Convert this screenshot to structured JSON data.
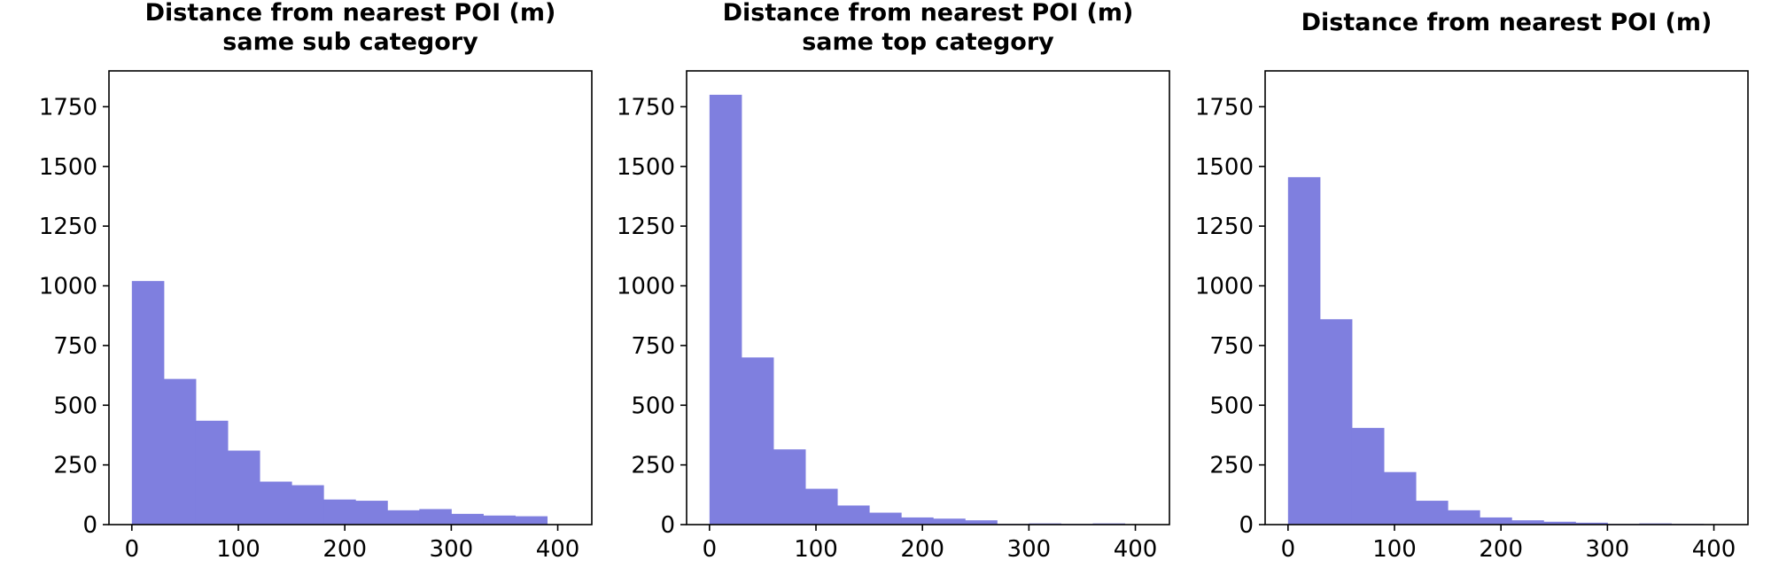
{
  "chart_data": [
    {
      "type": "bar",
      "title": [
        "Distance from nearest POI (m)",
        "same sub category"
      ],
      "bin_edges": [
        0,
        30,
        60,
        90,
        120,
        150,
        180,
        210,
        240,
        270,
        300,
        330,
        360,
        390
      ],
      "values": [
        1020,
        610,
        435,
        310,
        180,
        165,
        105,
        100,
        60,
        65,
        45,
        38,
        35
      ],
      "xlim": [
        -21.5,
        432
      ],
      "ylim": [
        0,
        1900
      ],
      "xticks": [
        "0",
        "100",
        "200",
        "300",
        "400"
      ],
      "yticks": [
        "0",
        "250",
        "500",
        "750",
        "1000",
        "1250",
        "1500",
        "1750"
      ],
      "color": "#7f7fdf",
      "grid": false
    },
    {
      "type": "bar",
      "title": [
        "Distance from nearest POI (m)",
        "same top category"
      ],
      "bin_edges": [
        0,
        30,
        60,
        90,
        120,
        150,
        180,
        210,
        240,
        270,
        300,
        330,
        360,
        390
      ],
      "values": [
        1800,
        700,
        315,
        150,
        80,
        50,
        30,
        25,
        18,
        3,
        5,
        3,
        5
      ],
      "xlim": [
        -21.5,
        432
      ],
      "ylim": [
        0,
        1900
      ],
      "xticks": [
        "0",
        "100",
        "200",
        "300",
        "400"
      ],
      "yticks": [
        "0",
        "250",
        "500",
        "750",
        "1000",
        "1250",
        "1500",
        "1750"
      ],
      "color": "#7f7fdf",
      "grid": false
    },
    {
      "type": "bar",
      "title": [
        "Distance from nearest POI (m)"
      ],
      "bin_edges": [
        0,
        30,
        60,
        90,
        120,
        150,
        180,
        210,
        240,
        270,
        300,
        330,
        360,
        390
      ],
      "values": [
        1455,
        860,
        405,
        220,
        100,
        60,
        30,
        18,
        12,
        8,
        3,
        5,
        3
      ],
      "xlim": [
        -21.5,
        432
      ],
      "ylim": [
        0,
        1900
      ],
      "xticks": [
        "0",
        "100",
        "200",
        "300",
        "400"
      ],
      "yticks": [
        "0",
        "250",
        "500",
        "750",
        "1000",
        "1250",
        "1500",
        "1750"
      ],
      "color": "#7f7fdf",
      "grid": false
    }
  ]
}
